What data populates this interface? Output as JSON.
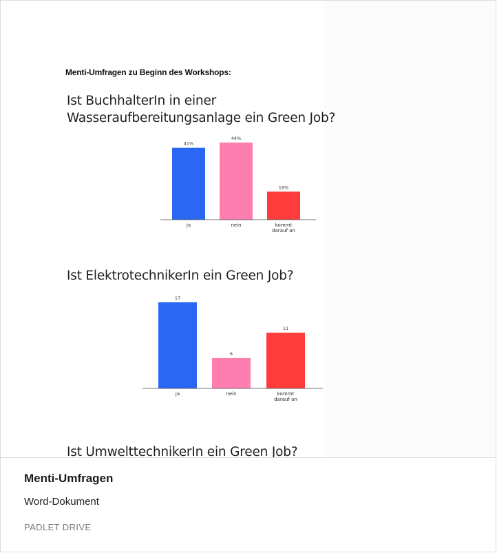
{
  "document": {
    "heading": "Menti-Umfragen zu Beginn des Workshops:",
    "questions": [
      {
        "title_line1": "Ist BuchhalterIn in einer",
        "title_line2": "Wasseraufbereitungsanlage ein Green Job?"
      },
      {
        "title_line1": "Ist ElektrotechnikerIn ein Green Job?"
      },
      {
        "title_line1": "Ist UmwelttechnikerIn ein Green Job?"
      }
    ]
  },
  "chart_data": [
    {
      "type": "bar",
      "categories": [
        [
          "ja"
        ],
        [
          "nein"
        ],
        [
          "kommt",
          "darauf an"
        ]
      ],
      "values": [
        41,
        44,
        16
      ],
      "value_labels": [
        "41%",
        "44%",
        "16%"
      ],
      "colors": [
        "#2a67f3",
        "#ff7eb0",
        "#ff3c3c"
      ]
    },
    {
      "type": "bar",
      "categories": [
        [
          "ja"
        ],
        [
          "nein"
        ],
        [
          "kommt",
          "darauf an"
        ]
      ],
      "values": [
        17,
        6,
        11
      ],
      "value_labels": [
        "17",
        "6",
        "11"
      ],
      "colors": [
        "#2a67f3",
        "#ff7eb0",
        "#ff3c3c"
      ]
    }
  ],
  "footer": {
    "title": "Menti-Umfragen",
    "type": "Word-Dokument",
    "source": "PADLET DRIVE"
  }
}
